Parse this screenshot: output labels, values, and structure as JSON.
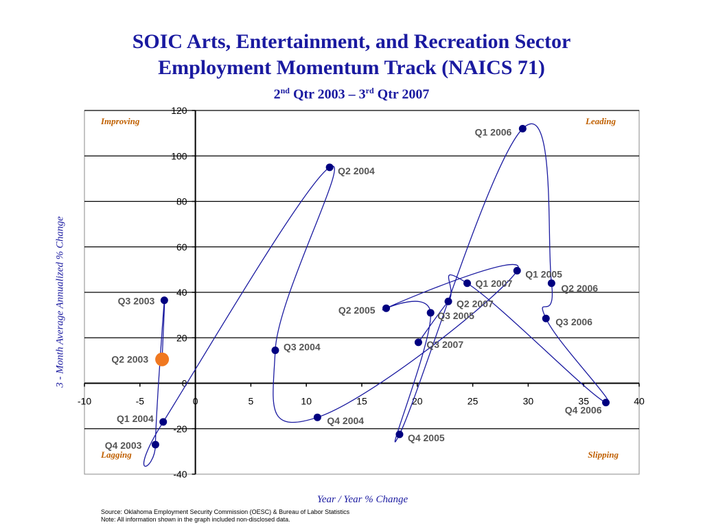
{
  "title": {
    "line1": "SOIC Arts, Entertainment, and Recreation Sector",
    "line2": "Employment Momentum Track (NAICS 71)",
    "line3_a": "2",
    "line3_sup1": "nd",
    "line3_b": " Qtr 2003 – 3",
    "line3_sup2": "rd",
    "line3_c": " Qtr 2007"
  },
  "footnotes": {
    "source": "Source:  Oklahoma Employment Security Commission (OESC) & Bureau of Labor Statistics",
    "note": "Note: All information shown in the graph included non-disclosed data."
  },
  "colors": {
    "title": "#1a1aa0",
    "line": "#1a1aa0",
    "marker": "#000080",
    "start_marker": "#f07820",
    "quadrant_label": "#c06000",
    "point_label": "#555555"
  },
  "chart_data": {
    "type": "scatter",
    "connected": true,
    "xlabel": "Year / Year % Change",
    "ylabel": "3 - Month Average Annualized % Change",
    "xlim": [
      -10,
      40
    ],
    "ylim": [
      -40,
      120
    ],
    "xticks": [
      "-10",
      "-5",
      "0",
      "5",
      "10",
      "15",
      "20",
      "25",
      "30",
      "35",
      "40"
    ],
    "yticks": [
      "-40",
      "-20",
      "0",
      "20",
      "40",
      "60",
      "80",
      "100",
      "120"
    ],
    "grid": "horizontal",
    "quadrants": {
      "top_left": "Improving",
      "top_right": "Leading",
      "bottom_left": "Lagging",
      "bottom_right": "Slipping"
    },
    "points": [
      {
        "label": "Q2 2003",
        "x": -3.0,
        "y": 10.5,
        "start": true
      },
      {
        "label": "Q3 2003",
        "x": -2.8,
        "y": 36.5
      },
      {
        "label": "Q4 2003",
        "x": -3.6,
        "y": -27.0
      },
      {
        "label": "Q1 2004",
        "x": -2.9,
        "y": -17.0
      },
      {
        "label": "Q2 2004",
        "x": 12.1,
        "y": 95.0
      },
      {
        "label": "Q3 2004",
        "x": 7.2,
        "y": 14.5
      },
      {
        "label": "Q4 2004",
        "x": 11.0,
        "y": -15.0
      },
      {
        "label": "Q1 2005",
        "x": 29.0,
        "y": 49.5
      },
      {
        "label": "Q2 2005",
        "x": 17.2,
        "y": 33.0
      },
      {
        "label": "Q3 2005",
        "x": 21.2,
        "y": 31.0
      },
      {
        "label": "Q4 2005",
        "x": 18.4,
        "y": -22.5
      },
      {
        "label": "Q1 2006",
        "x": 29.5,
        "y": 112.0
      },
      {
        "label": "Q2 2006",
        "x": 32.1,
        "y": 44.0
      },
      {
        "label": "Q3 2006",
        "x": 31.6,
        "y": 28.5
      },
      {
        "label": "Q4 2006",
        "x": 37.0,
        "y": -8.5
      },
      {
        "label": "Q1 2007",
        "x": 24.5,
        "y": 44.0
      },
      {
        "label": "Q2 2007",
        "x": 22.8,
        "y": 36.0
      },
      {
        "label": "Q3 2007",
        "x": 20.1,
        "y": 18.0
      }
    ]
  }
}
